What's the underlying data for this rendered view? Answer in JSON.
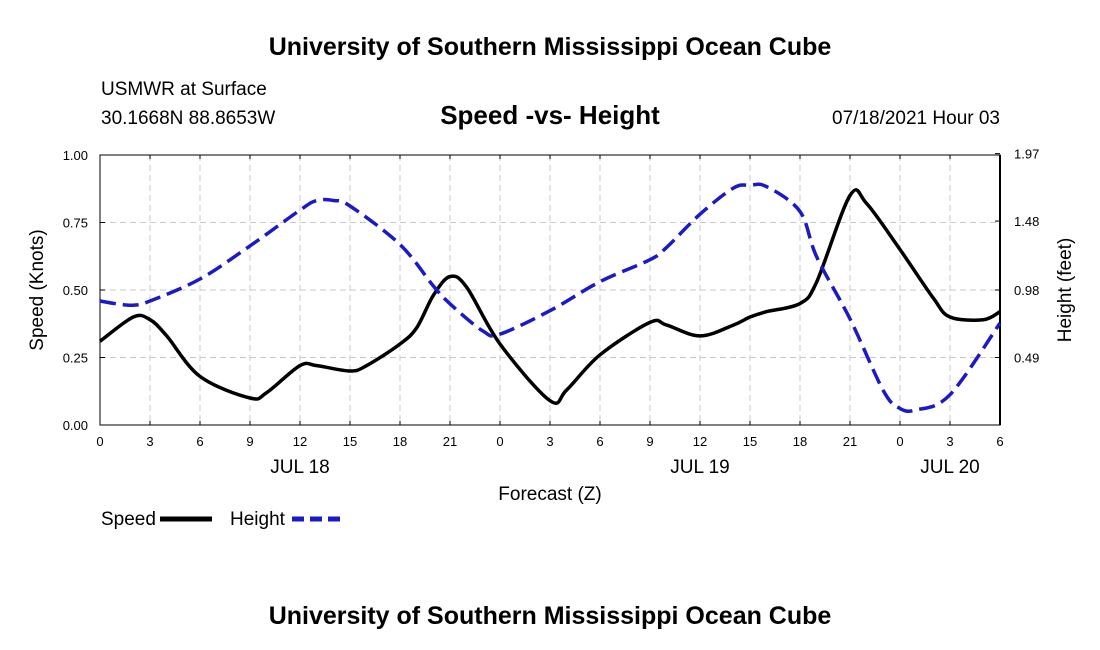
{
  "header": {
    "title_top": "University of Southern Mississippi Ocean Cube",
    "station": "USMWR at Surface",
    "coords": "30.1668N  88.8653W",
    "chart_heading": "Speed -vs- Height",
    "datetime": "07/18/2021 Hour 03",
    "title_bottom": "University of Southern Mississippi Ocean Cube"
  },
  "chart_data": {
    "type": "line",
    "title": "Speed -vs- Height",
    "xlabel": "Forecast (Z)",
    "ylabel": "Speed (Knots)",
    "y2label": "Height (feet)",
    "xlim": [
      0,
      54
    ],
    "ylim": [
      0,
      1.0
    ],
    "y2lim": [
      0.0,
      1.96
    ],
    "grid": true,
    "x_ticks": [
      {
        "x": 0,
        "label": "0"
      },
      {
        "x": 3,
        "label": "3"
      },
      {
        "x": 6,
        "label": "6"
      },
      {
        "x": 9,
        "label": "9"
      },
      {
        "x": 12,
        "label": "12"
      },
      {
        "x": 15,
        "label": "15"
      },
      {
        "x": 18,
        "label": "18"
      },
      {
        "x": 21,
        "label": "21"
      },
      {
        "x": 24,
        "label": "0"
      },
      {
        "x": 27,
        "label": "3"
      },
      {
        "x": 30,
        "label": "6"
      },
      {
        "x": 33,
        "label": "9"
      },
      {
        "x": 36,
        "label": "12"
      },
      {
        "x": 39,
        "label": "15"
      },
      {
        "x": 42,
        "label": "18"
      },
      {
        "x": 45,
        "label": "21"
      },
      {
        "x": 48,
        "label": "0"
      },
      {
        "x": 51,
        "label": "3"
      },
      {
        "x": 54,
        "label": "6"
      }
    ],
    "day_labels": [
      {
        "x": 12,
        "label": "JUL 18"
      },
      {
        "x": 36,
        "label": "JUL 19"
      },
      {
        "x": 51,
        "label": "JUL 20"
      }
    ],
    "y_ticks": [
      {
        "value": 0.0,
        "label": "0.00"
      },
      {
        "value": 0.25,
        "label": "0.25"
      },
      {
        "value": 0.5,
        "label": "0.50"
      },
      {
        "value": 0.75,
        "label": "0.75"
      },
      {
        "value": 1.0,
        "label": "1.00"
      }
    ],
    "y2_ticks": [
      {
        "value": 0.49,
        "label": "0.49"
      },
      {
        "value": 0.98,
        "label": "0.98"
      },
      {
        "value": 1.48,
        "label": "1.48"
      },
      {
        "value": 1.97,
        "label": "1.97"
      }
    ],
    "series": [
      {
        "name": "Speed",
        "axis": "left",
        "color": "#000000",
        "dash": false,
        "x": [
          0,
          2,
          3,
          4,
          6,
          9,
          10,
          12,
          13,
          15,
          16,
          18,
          19,
          20,
          21,
          22,
          24,
          27,
          28,
          30,
          33,
          34,
          36,
          38,
          39,
          40,
          42,
          43,
          45,
          46,
          48,
          50,
          51,
          53,
          54
        ],
        "y": [
          0.31,
          0.4,
          0.39,
          0.33,
          0.18,
          0.1,
          0.12,
          0.22,
          0.22,
          0.2,
          0.22,
          0.3,
          0.36,
          0.48,
          0.55,
          0.51,
          0.3,
          0.09,
          0.13,
          0.26,
          0.38,
          0.37,
          0.33,
          0.37,
          0.4,
          0.42,
          0.45,
          0.53,
          0.85,
          0.82,
          0.65,
          0.47,
          0.4,
          0.39,
          0.42
        ]
      },
      {
        "name": "Height",
        "axis": "right",
        "color": "#1a1ac8",
        "dash": true,
        "x": [
          0,
          1,
          2,
          3,
          6,
          9,
          12,
          13,
          14,
          15,
          18,
          20,
          21,
          23,
          24,
          27,
          30,
          33,
          34,
          36,
          38,
          39,
          40,
          42,
          43,
          45,
          47,
          48,
          49,
          51,
          54
        ],
        "y": [
          0.9,
          0.88,
          0.87,
          0.9,
          1.06,
          1.3,
          1.56,
          1.63,
          1.63,
          1.59,
          1.31,
          1.01,
          0.88,
          0.68,
          0.66,
          0.83,
          1.04,
          1.2,
          1.29,
          1.53,
          1.72,
          1.74,
          1.73,
          1.55,
          1.22,
          0.77,
          0.25,
          0.12,
          0.11,
          0.22,
          0.74
        ]
      }
    ]
  },
  "legend": {
    "speed_label": "Speed",
    "height_label": "Height"
  }
}
